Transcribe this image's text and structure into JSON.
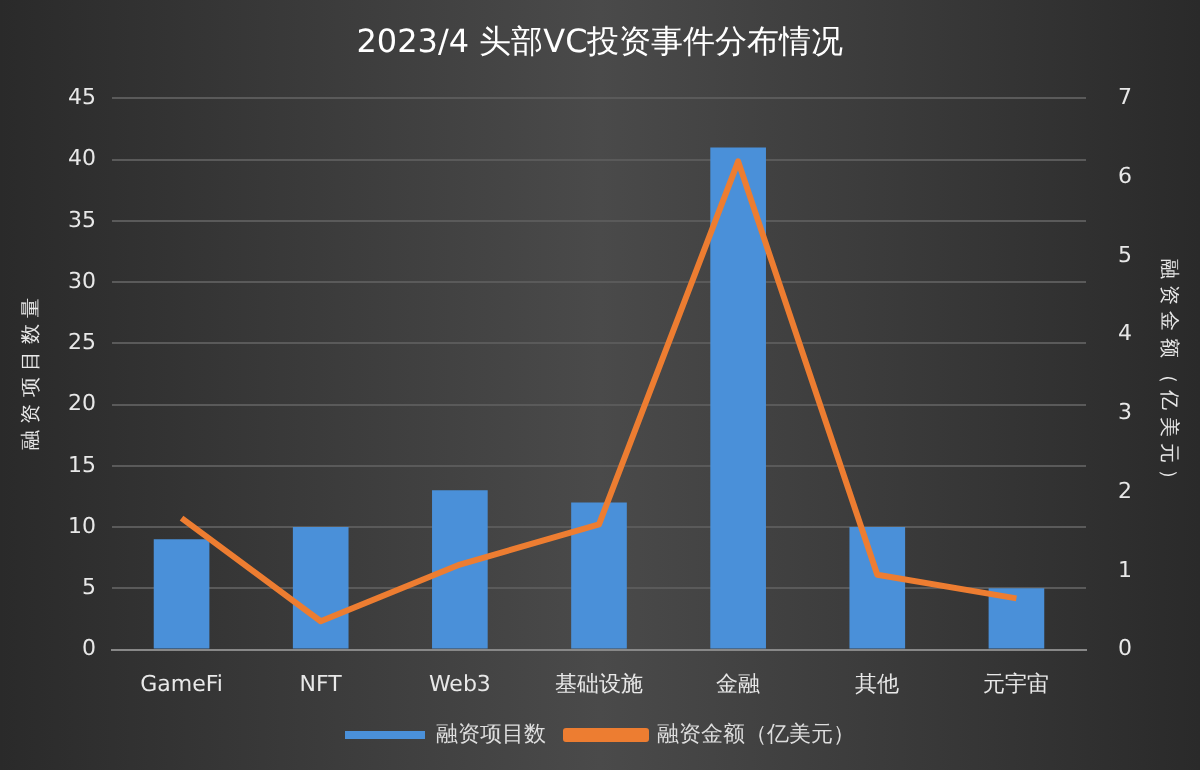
{
  "chart_data": {
    "type": "bar",
    "title": "2023/4 头部VC投资事件分布情况",
    "categories": [
      "GameFi",
      "NFT",
      "Web3",
      "基础设施",
      "金融",
      "其他",
      "元宇宙"
    ],
    "series": [
      {
        "name": "融资项目数",
        "color": "#4a90d9",
        "values": [
          9,
          10,
          13,
          12,
          41,
          10,
          5
        ]
      },
      {
        "name": "融资金额（亿美元）",
        "type": "line",
        "axis": "y2",
        "color": "#ed7d31",
        "values": [
          1.67,
          0.36,
          1.08,
          1.59,
          6.2,
          0.95,
          0.65
        ]
      }
    ],
    "ylabel": "融资项目数量",
    "y2label": "融资金额（亿美元）",
    "ylim": [
      0,
      45
    ],
    "yticks": [
      0,
      5,
      10,
      15,
      20,
      25,
      30,
      35,
      40,
      45
    ],
    "y2lim": [
      0,
      7
    ],
    "y2ticks": [
      0,
      1,
      2,
      3,
      4,
      5,
      6,
      7
    ],
    "grid": "y",
    "legend": "bottom",
    "marker": "none"
  }
}
